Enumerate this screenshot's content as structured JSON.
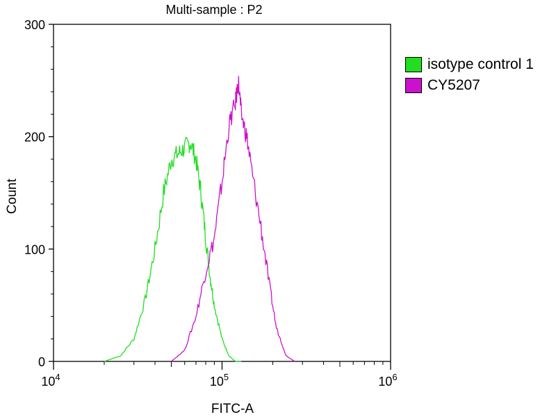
{
  "chart_data": {
    "type": "line",
    "title": "Multi-sample : P2",
    "xlabel": "FITC-A",
    "ylabel": "Count",
    "xscale": "log",
    "xlim": [
      10000,
      1000000
    ],
    "ylim": [
      0,
      300
    ],
    "x_ticks": [
      {
        "base": "10",
        "exp": "4"
      },
      {
        "base": "10",
        "exp": "5"
      },
      {
        "base": "10",
        "exp": "6"
      }
    ],
    "y_ticks": [
      "0",
      "100",
      "200",
      "300"
    ],
    "grid": false,
    "legend_position": "right",
    "series": [
      {
        "name": "isotype control 1",
        "color": "#22dd22",
        "x": [
          20000,
          25000,
          30000,
          35000,
          40000,
          45000,
          50000,
          55000,
          60000,
          65000,
          70000,
          75000,
          80000,
          85000,
          90000,
          100000,
          110000,
          120000,
          130000
        ],
        "y": [
          0,
          5,
          20,
          55,
          100,
          150,
          180,
          185,
          190,
          195,
          180,
          150,
          110,
          75,
          50,
          20,
          5,
          0,
          0
        ]
      },
      {
        "name": "CY5207",
        "color": "#cc11cc",
        "x": [
          50000,
          60000,
          70000,
          80000,
          90000,
          100000,
          110000,
          120000,
          125000,
          130000,
          140000,
          150000,
          170000,
          190000,
          210000,
          240000,
          270000
        ],
        "y": [
          0,
          10,
          40,
          80,
          110,
          160,
          210,
          230,
          250,
          220,
          200,
          170,
          120,
          70,
          30,
          5,
          0
        ]
      }
    ]
  }
}
